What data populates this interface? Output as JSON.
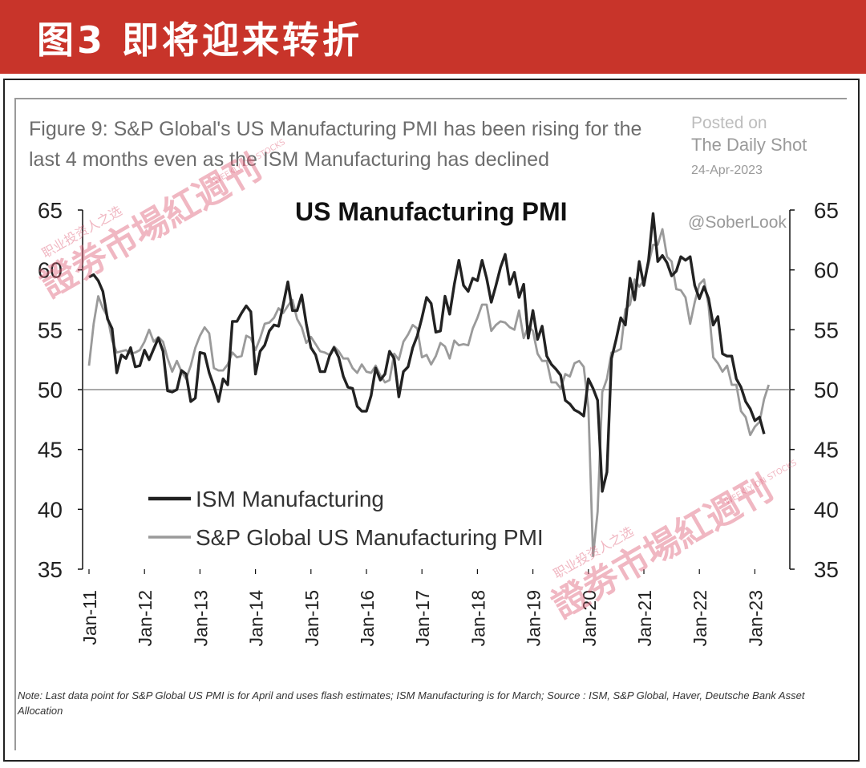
{
  "banner": {
    "title": "图3  即将迎来转折"
  },
  "figure": {
    "title": "Figure 9: S&P Global's US Manufacturing PMI has been rising for the last 4 months even as the ISM Manufacturing has declined",
    "source_heading": "Posted on",
    "source_name": "The Daily Shot",
    "source_date": "24-Apr-2023",
    "handle": "@SoberLook",
    "note": "Note: Last data point for S&P Global US PMI is for April and uses flash estimates; ISM Manufacturing is for March; Source : ISM, S&P Global, Haver, Deutsche Bank Asset Allocation"
  },
  "watermark": {
    "text": "證劵市場紅週刊",
    "tagline": "职业投资人之选",
    "english": "WEEKLY ON STOCKS"
  },
  "chart_data": {
    "type": "line",
    "title": "US Manufacturing PMI",
    "ylim": [
      35,
      65
    ],
    "y_ticks": [
      35,
      40,
      45,
      50,
      55,
      60,
      65
    ],
    "y_axis_both_sides": true,
    "reference_line": 50,
    "x_ticks": [
      "Jan-11",
      "Jan-12",
      "Jan-13",
      "Jan-14",
      "Jan-15",
      "Jan-16",
      "Jan-17",
      "Jan-18",
      "Jan-19",
      "Jan-20",
      "Jan-21",
      "Jan-22",
      "Jan-23"
    ],
    "x_start": "2011-01",
    "legend_position": "lower-left",
    "series": [
      {
        "name": "ISM Manufacturing",
        "color": "#222222",
        "start": "2011-01",
        "values": [
          59.4,
          59.6,
          59.1,
          58.2,
          55.9,
          55.1,
          51.4,
          52.9,
          52.6,
          53.5,
          51.9,
          52.0,
          53.3,
          52.5,
          53.4,
          54.3,
          53.2,
          49.9,
          49.8,
          50.0,
          51.6,
          51.3,
          49.0,
          49.3,
          53.1,
          53.0,
          51.4,
          50.3,
          49.0,
          50.9,
          50.4,
          55.7,
          55.7,
          56.4,
          57.0,
          56.5,
          51.3,
          53.2,
          53.7,
          54.9,
          55.4,
          55.3,
          57.1,
          59.0,
          56.6,
          56.6,
          57.9,
          55.5,
          53.5,
          52.9,
          51.5,
          51.5,
          52.8,
          53.5,
          52.7,
          51.1,
          50.2,
          50.1,
          48.6,
          48.2,
          48.2,
          49.5,
          51.8,
          50.8,
          51.3,
          53.2,
          52.6,
          49.4,
          51.5,
          51.9,
          53.5,
          54.5,
          56.0,
          57.7,
          57.2,
          54.8,
          54.9,
          57.8,
          56.3,
          58.8,
          60.8,
          58.7,
          58.2,
          59.3,
          59.1,
          60.8,
          59.3,
          57.3,
          58.7,
          60.2,
          61.3,
          58.8,
          59.8,
          57.7,
          58.8,
          54.3,
          56.6,
          54.2,
          55.3,
          52.8,
          52.1,
          51.7,
          51.2,
          49.1,
          48.8,
          48.3,
          48.1,
          47.8,
          50.9,
          50.1,
          49.1,
          41.5,
          43.1,
          52.6,
          54.2,
          56.0,
          55.4,
          59.3,
          57.5,
          60.7,
          58.7,
          60.8,
          64.7,
          60.7,
          61.2,
          60.6,
          59.5,
          59.9,
          61.1,
          60.8,
          61.1,
          58.7,
          57.6,
          58.6,
          57.6,
          55.4,
          56.1,
          53.0,
          52.8,
          52.8,
          50.9,
          50.2,
          49.0,
          48.4,
          47.4,
          47.7,
          46.3
        ]
      },
      {
        "name": "S&P Global US Manufacturing PMI",
        "color": "#9a9a9a",
        "start": "2011-01",
        "values": [
          52.0,
          55.5,
          57.8,
          56.8,
          56.1,
          54.1,
          53.1,
          53.2,
          53.3,
          53.0,
          53.1,
          53.3,
          54.0,
          55.0,
          54.0,
          54.4,
          54.0,
          52.6,
          51.5,
          52.4,
          51.5,
          50.9,
          52.0,
          53.5,
          54.5,
          55.2,
          54.7,
          51.8,
          51.6,
          51.6,
          52.1,
          53.1,
          52.7,
          52.8,
          54.5,
          54.3,
          53.3,
          54.3,
          55.5,
          55.6,
          56.0,
          56.8,
          56.4,
          57.0,
          57.5,
          55.9,
          55.2,
          53.9,
          54.4,
          53.8,
          53.2,
          53.1,
          52.9,
          53.6,
          53.2,
          52.6,
          52.6,
          51.8,
          51.4,
          52.1,
          51.5,
          51.4,
          52.0,
          51.2,
          50.6,
          50.8,
          53.0,
          52.5,
          54.0,
          54.6,
          55.4,
          55.1,
          52.7,
          52.9,
          52.1,
          52.8,
          53.9,
          53.6,
          52.6,
          54.1,
          53.7,
          53.8,
          53.7,
          55.1,
          56.0,
          57.1,
          57.1,
          54.9,
          55.4,
          55.7,
          55.6,
          55.2,
          55.0,
          56.6,
          54.3,
          55.3,
          54.9,
          53.0,
          52.4,
          52.4,
          50.6,
          50.6,
          50.1,
          51.3,
          51.1,
          52.2,
          52.4,
          51.9,
          48.5,
          36.1,
          39.8,
          49.8,
          50.9,
          53.1,
          53.2,
          53.4,
          56.7,
          57.1,
          59.2,
          58.6,
          59.1,
          60.5,
          62.1,
          62.1,
          63.4,
          61.1,
          60.7,
          58.4,
          58.3,
          57.7,
          55.5,
          57.3,
          58.8,
          59.2,
          57.0,
          52.7,
          52.2,
          51.5,
          52.0,
          50.4,
          50.4,
          48.2,
          47.7,
          46.2,
          46.9,
          47.3,
          49.2,
          50.4
        ]
      }
    ]
  }
}
